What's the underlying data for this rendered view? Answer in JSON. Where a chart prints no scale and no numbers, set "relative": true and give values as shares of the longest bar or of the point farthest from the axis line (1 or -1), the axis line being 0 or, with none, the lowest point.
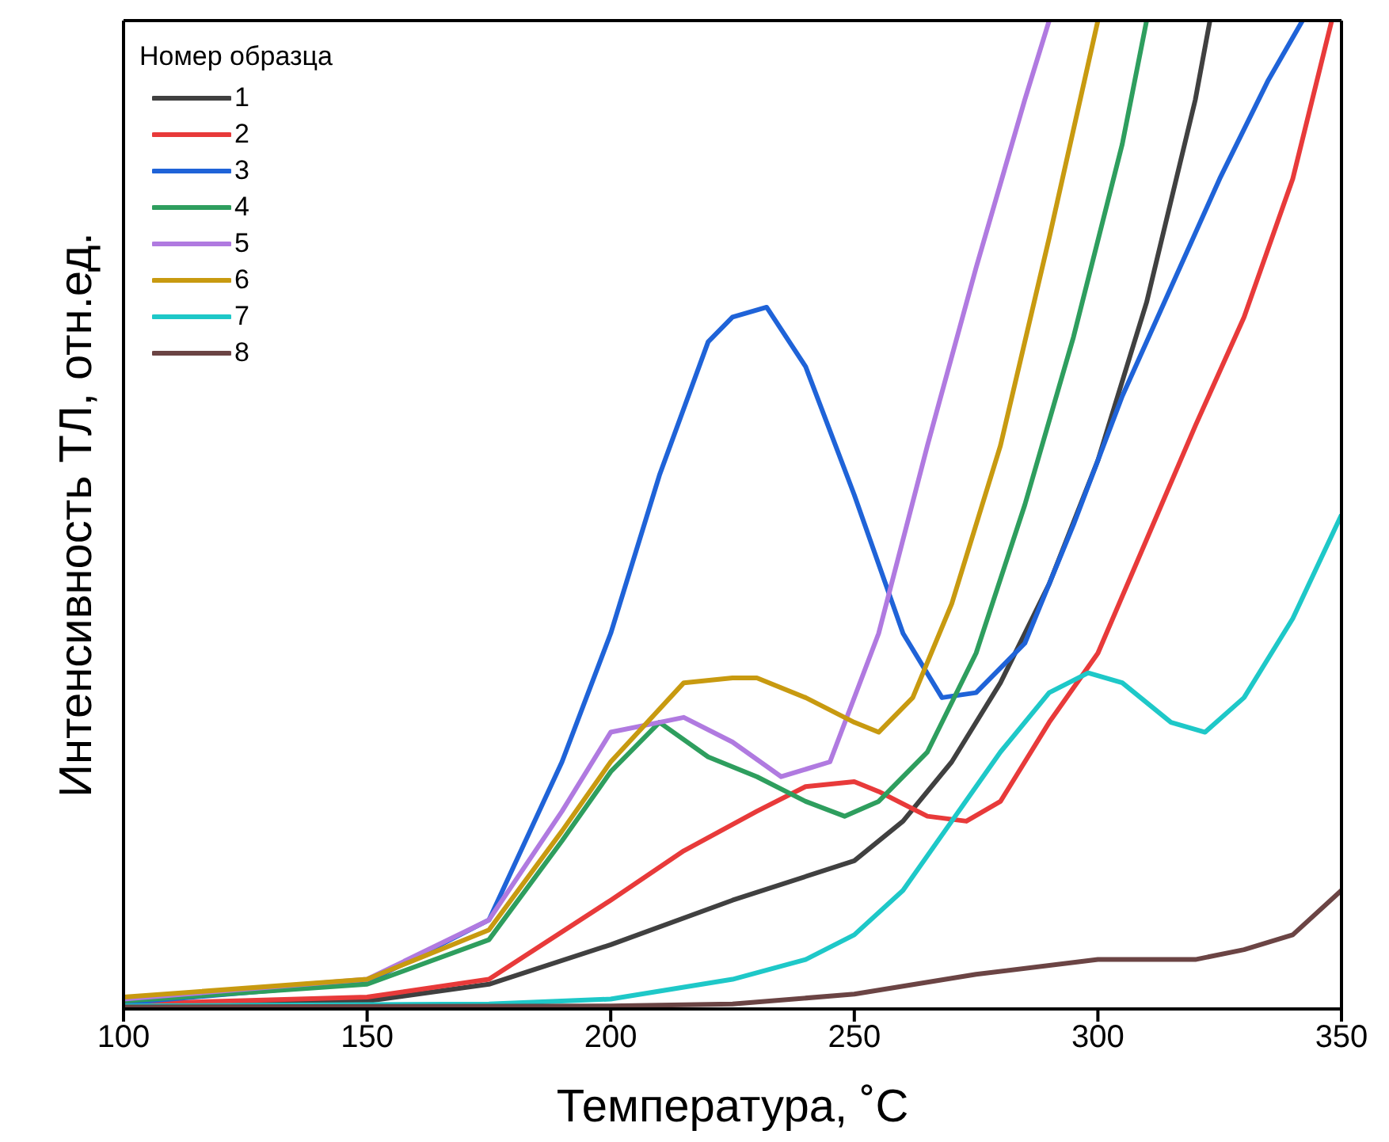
{
  "chart_data": {
    "type": "line",
    "relative": true,
    "xlabel": "Температура, ˚С",
    "ylabel": "Интенсивность ТЛ, отн.ед.",
    "legend_title": "Номер образца",
    "legend": "top left",
    "grid": false,
    "xlim": [
      100,
      350
    ],
    "xticks": [
      100,
      150,
      200,
      250,
      300,
      350
    ],
    "series": [
      {
        "name": "1",
        "color": "#404040",
        "x": [
          100,
          150,
          175,
          200,
          225,
          250,
          260,
          270,
          280,
          290,
          300,
          310,
          320,
          323
        ],
        "values": [
          0.004,
          0.008,
          0.025,
          0.065,
          0.11,
          0.15,
          0.19,
          0.25,
          0.33,
          0.43,
          0.555,
          0.715,
          0.92,
          1.0
        ]
      },
      {
        "name": "2",
        "color": "#e83a3a",
        "x": [
          100,
          150,
          175,
          200,
          215,
          230,
          240,
          250,
          255,
          265,
          273,
          280,
          290,
          300,
          310,
          320,
          330,
          340,
          348
        ],
        "values": [
          0.005,
          0.012,
          0.03,
          0.11,
          0.16,
          0.2,
          0.225,
          0.23,
          0.22,
          0.195,
          0.19,
          0.21,
          0.29,
          0.36,
          0.475,
          0.59,
          0.7,
          0.84,
          1.0
        ]
      },
      {
        "name": "3",
        "color": "#1f63d8",
        "x": [
          100,
          150,
          175,
          190,
          200,
          210,
          220,
          225,
          232,
          240,
          250,
          260,
          268,
          275,
          285,
          295,
          305,
          315,
          325,
          335,
          342
        ],
        "values": [
          0.006,
          0.027,
          0.09,
          0.25,
          0.38,
          0.54,
          0.675,
          0.7,
          0.71,
          0.65,
          0.52,
          0.38,
          0.315,
          0.32,
          0.37,
          0.49,
          0.62,
          0.73,
          0.84,
          0.94,
          1.0
        ]
      },
      {
        "name": "4",
        "color": "#2e9e5e",
        "x": [
          100,
          150,
          175,
          190,
          200,
          210,
          220,
          230,
          240,
          248,
          255,
          265,
          275,
          285,
          295,
          305,
          310
        ],
        "values": [
          0.008,
          0.025,
          0.07,
          0.17,
          0.24,
          0.29,
          0.255,
          0.235,
          0.21,
          0.195,
          0.21,
          0.26,
          0.36,
          0.51,
          0.68,
          0.875,
          1.0
        ]
      },
      {
        "name": "5",
        "color": "#b07ae0",
        "x": [
          100,
          150,
          175,
          190,
          200,
          210,
          215,
          225,
          235,
          245,
          255,
          265,
          275,
          285,
          290
        ],
        "values": [
          0.01,
          0.03,
          0.09,
          0.2,
          0.28,
          0.29,
          0.295,
          0.27,
          0.235,
          0.25,
          0.38,
          0.57,
          0.75,
          0.92,
          1.0
        ]
      },
      {
        "name": "6",
        "color": "#c89a10",
        "x": [
          100,
          150,
          175,
          190,
          200,
          215,
          225,
          230,
          240,
          250,
          255,
          262,
          270,
          280,
          290,
          300
        ],
        "values": [
          0.012,
          0.03,
          0.08,
          0.18,
          0.25,
          0.33,
          0.335,
          0.335,
          0.315,
          0.29,
          0.28,
          0.315,
          0.41,
          0.57,
          0.78,
          1.0
        ]
      },
      {
        "name": "7",
        "color": "#1ec8c8",
        "x": [
          100,
          175,
          200,
          225,
          240,
          250,
          260,
          270,
          280,
          290,
          298,
          305,
          315,
          322,
          330,
          340,
          350
        ],
        "values": [
          0.003,
          0.005,
          0.01,
          0.03,
          0.05,
          0.075,
          0.12,
          0.19,
          0.26,
          0.32,
          0.34,
          0.33,
          0.29,
          0.28,
          0.315,
          0.395,
          0.5
        ]
      },
      {
        "name": "8",
        "color": "#6b4444",
        "x": [
          100,
          200,
          225,
          250,
          275,
          300,
          320,
          330,
          340,
          350
        ],
        "values": [
          0.002,
          0.003,
          0.005,
          0.015,
          0.035,
          0.05,
          0.05,
          0.06,
          0.075,
          0.12
        ]
      }
    ]
  }
}
